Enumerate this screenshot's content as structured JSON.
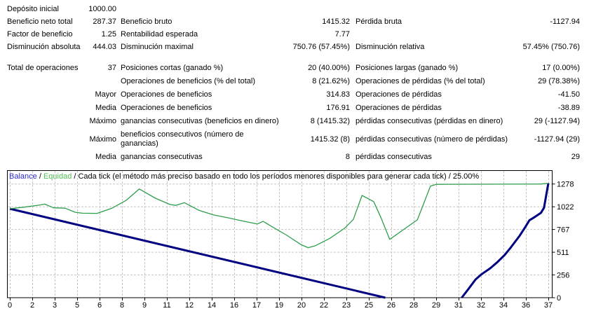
{
  "report": {
    "rows": [
      {
        "c1label": "Depósito inicial",
        "c1value": "1000.00",
        "c2label": "",
        "c2value": "",
        "c3label": "",
        "c3value": ""
      },
      {
        "c1label": "Beneficio neto total",
        "c1value": "287.37",
        "c2label": "Beneficio bruto",
        "c2value": "1415.32",
        "c3label": "Pérdida bruta",
        "c3value": "-1127.94"
      },
      {
        "c1label": "Factor de beneficio",
        "c1value": "1.25",
        "c2label": "Rentabilidad esperada",
        "c2value": "7.77",
        "c3label": "",
        "c3value": ""
      },
      {
        "c1label": "Disminución absoluta",
        "c1value": "444.03",
        "c2label": "Disminución maximal",
        "c2value": "750.76 (57.45%)",
        "c3label": "Disminución relativa",
        "c3value": "57.45% (750.76)"
      },
      {
        "c1label": "Total de operaciones",
        "c1value": "37",
        "c2label": "Posiciones cortas (ganado %)",
        "c2value": "20 (40.00%)",
        "c3label": "Posiciones largas (ganado %)",
        "c3value": "17 (0.00%)"
      },
      {
        "c1label": "",
        "c1value": "",
        "c2label": "Operaciones de beneficios (% del total)",
        "c2value": "8 (21.62%)",
        "c3label": "Operaciones de pérdidas (% del total)",
        "c3value": "29 (78.38%)"
      },
      {
        "c1label": "",
        "c1value": "Mayor",
        "c2label": "Operaciones de beneficios",
        "c2value": "314.83",
        "c3label": "Operaciones de pérdidas",
        "c3value": "-41.50"
      },
      {
        "c1label": "",
        "c1value": "Media",
        "c2label": "Operaciones de beneficios",
        "c2value": "176.91",
        "c3label": "Operaciones de pérdidas",
        "c3value": "-38.89"
      },
      {
        "c1label": "",
        "c1value": "Máximo",
        "c2label": "ganancias consecutivas (beneficios en dinero)",
        "c2value": "8 (1415.32)",
        "c3label": "pérdidas consecutivas (pérdidas en dinero)",
        "c3value": "29 (-1127.94)"
      },
      {
        "c1label": "",
        "c1value": "Máximo",
        "c2label": "beneficios consecutivos (número de\nganancias)",
        "c2value": "1415.32 (8)",
        "c3label": "pérdidas consecutivas (número de pérdidas)",
        "c3value": "-1127.94 (29)"
      },
      {
        "c1label": "",
        "c1value": "Media",
        "c2label": "ganancias consecutivas",
        "c2value": "8",
        "c3label": "pérdidas consecutivas",
        "c3value": "29"
      }
    ]
  },
  "legend": {
    "balance": "Balance",
    "sep": " / ",
    "equity": "Equidad",
    "description": "Cada tick (el método más preciso basado en todo los períodos menores disponibles para generar cada tick)",
    "quality": "25.00%"
  },
  "colors": {
    "balance_line": "#000080",
    "equity_line": "#2E9E4C",
    "balance_label": "#2A2AC8",
    "equity_label": "#53BE53",
    "grid": "#C6C6C6"
  },
  "chart_data": {
    "type": "line",
    "title": "Balance / Equidad / Cada tick (el método más preciso basado en todo los períodos menores disponibles para generar cada tick) / 25.00%",
    "xlabel": "",
    "ylabel": "",
    "x_axis": {
      "ticks": [
        "0",
        "2",
        "3",
        "5",
        "6",
        "8",
        "9",
        "11",
        "12",
        "14",
        "16",
        "17",
        "19",
        "20",
        "22",
        "23",
        "25",
        "26",
        "28",
        "29",
        "31",
        "32",
        "34",
        "36",
        "37"
      ],
      "range": [
        0,
        37
      ]
    },
    "y_axis": {
      "ticks": [
        0,
        256,
        511,
        767,
        1022,
        1278
      ],
      "range": [
        0,
        1433
      ]
    },
    "grid": true,
    "legend_position": "top-left-inside",
    "series": [
      {
        "name": "Balance",
        "color": "#000080",
        "width": 3,
        "segments": [
          [
            [
              0,
              1000
            ],
            [
              25.8,
              0
            ]
          ],
          [
            [
              31.05,
              0
            ],
            [
              31.5,
              95
            ],
            [
              32,
              205
            ],
            [
              32.4,
              262
            ],
            [
              33,
              330
            ],
            [
              33.5,
              400
            ],
            [
              34,
              480
            ],
            [
              34.4,
              560
            ],
            [
              35,
              690
            ],
            [
              35.4,
              790
            ],
            [
              35.7,
              870
            ],
            [
              36,
              900
            ],
            [
              36.5,
              955
            ],
            [
              36.7,
              1010
            ],
            [
              37,
              1287
            ]
          ]
        ]
      },
      {
        "name": "Equidad",
        "color": "#2E9E4C",
        "width": 1.3,
        "segments": [
          [
            [
              0,
              1000
            ],
            [
              1,
              1018
            ],
            [
              2,
              1040
            ],
            [
              2.4,
              1052
            ],
            [
              3,
              1010
            ],
            [
              3.8,
              1006
            ],
            [
              4.5,
              960
            ],
            [
              5,
              950
            ],
            [
              6,
              948
            ],
            [
              7,
              1005
            ],
            [
              8,
              1095
            ],
            [
              8.9,
              1222
            ],
            [
              10,
              1118
            ],
            [
              11,
              1048
            ],
            [
              11.4,
              1038
            ],
            [
              12,
              1068
            ],
            [
              13,
              982
            ],
            [
              14,
              930
            ],
            [
              15,
              898
            ],
            [
              16,
              862
            ],
            [
              17,
              828
            ],
            [
              17.4,
              858
            ],
            [
              18,
              800
            ],
            [
              19,
              705
            ],
            [
              20,
              598
            ],
            [
              20.5,
              562
            ],
            [
              21,
              585
            ],
            [
              22,
              668
            ],
            [
              23,
              780
            ],
            [
              23.6,
              880
            ],
            [
              24.2,
              1150
            ],
            [
              25,
              1080
            ],
            [
              25.5,
              900
            ],
            [
              26.1,
              655
            ],
            [
              27,
              760
            ],
            [
              28,
              875
            ],
            [
              28.3,
              1000
            ],
            [
              28.9,
              1255
            ],
            [
              29.3,
              1274
            ],
            [
              36.5,
              1278
            ],
            [
              37,
              1287
            ]
          ]
        ]
      }
    ]
  }
}
